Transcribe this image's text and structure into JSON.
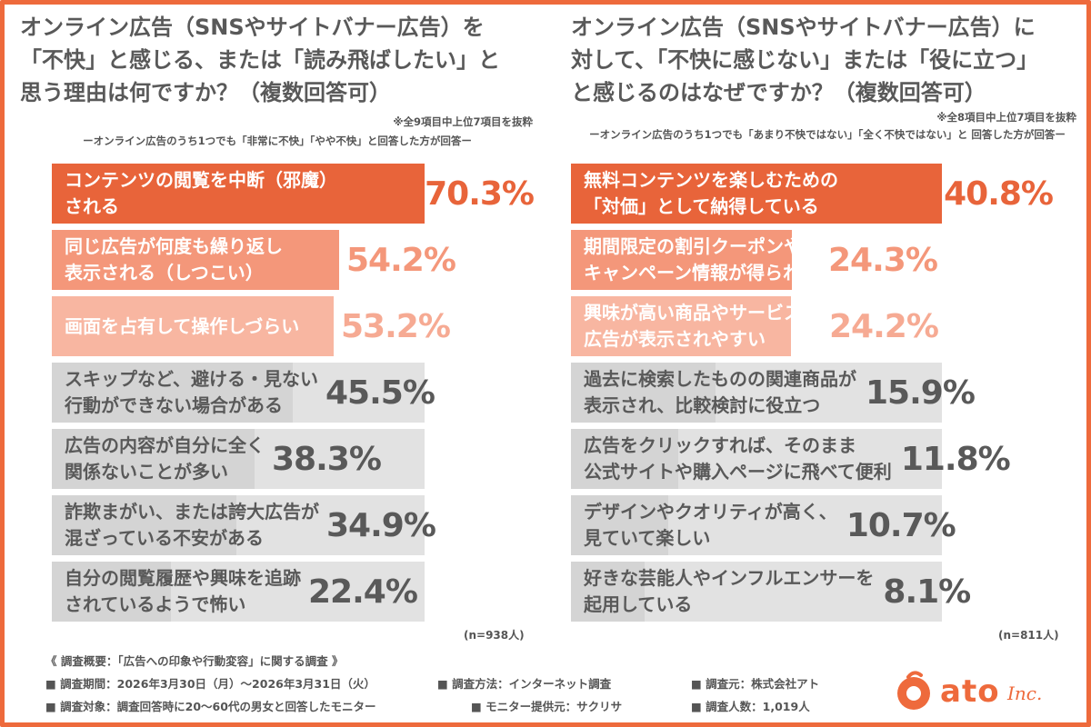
{
  "chart_data": [
    {
      "type": "bar",
      "title": "オンライン広告（SNSやサイトバナー広告）を\n「不快」と感じる、または「読み飛ばしたい」と\n思う理由は何ですか？（複数回答可）",
      "note": "※全9項目中上位7項目を抜粋",
      "subtitle": "ーオンライン広告のうち1つでも「非常に不快」「やや不快」と回答した方が回答ー",
      "categories": [
        "コンテンツの閲覧を中断（邪魔）\nされる",
        "同じ広告が何度も繰り返し\n表示される（しつこい）",
        "画面を占有して操作しづらい",
        "スキップなど、避ける・見ない\n行動ができない場合がある",
        "広告の内容が自分に全く\n関係ないことが多い",
        "詐欺まがい、または誇大広告が\n混ざっている不安がある",
        "自分の閲覧履歴や興味を追跡\nされているようで怖い"
      ],
      "values": [
        70.3,
        54.2,
        53.2,
        45.5,
        38.3,
        34.9,
        22.4
      ],
      "value_labels": [
        "70.3%",
        "54.2%",
        "53.2%",
        "45.5%",
        "38.3%",
        "34.9%",
        "22.4%"
      ],
      "n": "(n=938人)",
      "xlim": [
        0,
        100
      ]
    },
    {
      "type": "bar",
      "title": "オンライン広告（SNSやサイトバナー広告）に\n対して、「不快に感じない」または「役に立つ」\nと感じるのはなぜですか？（複数回答可）",
      "note": "※全8項目中上位7項目を抜粋",
      "subtitle": "ーオンライン広告のうち1つでも「あまり不快ではない」「全く不快ではない」と\n回答した方が回答ー",
      "categories": [
        "無料コンテンツを楽しむための\n「対価」として納得している",
        "期間限定の割引クーポンや\nキャンペーン情報が得られる",
        "興味が高い商品やサービスの\n広告が表示されやすい",
        "過去に検索したものの関連商品が\n表示され、比較検討に役立つ",
        "広告をクリックすれば、そのまま\n公式サイトや購入ページに飛べて便利",
        "デザインやクオリティが高く、\n見ていて楽しい",
        "好きな芸能人やインフルエンサーを\n起用している"
      ],
      "values": [
        40.8,
        24.3,
        24.2,
        15.9,
        11.8,
        10.7,
        8.1
      ],
      "value_labels": [
        "40.8%",
        "24.3%",
        "24.2%",
        "15.9%",
        "11.8%",
        "10.7%",
        "8.1%"
      ],
      "n": "(n=811人)",
      "xlim": [
        0,
        100
      ]
    }
  ],
  "colors": {
    "rank1": "#e8643a",
    "rank2": "#f4977a",
    "rank3": "#f8b6a1",
    "rest_fill": "#c8c8c8",
    "rest_bg": "#e2e2e2",
    "rank1_text": "#e8643a",
    "rank2_text": "#f4977a",
    "rank3_text": "#f6aa93",
    "rest_text": "#595959",
    "brand": "#ee6a3c"
  },
  "footer": {
    "overview": "《 調査概要：「広告への印象や行動変容」に関する調査 》",
    "period": "■ 調査期間：2026年3月30日（月）〜2026年3月31日（火）",
    "method": "■ 調査方法：インターネット調査",
    "source": "■ 調査元：株式会社アト",
    "target": "■ 調査対象：調査回答時に20〜60代の男女と回答したモニター",
    "provider": "■ モニター提供元：サクリサ",
    "count": "■ 調査人数：1,019人"
  },
  "logo": {
    "text": "ato",
    "suffix": "Inc.",
    "icon": "ato-logo-icon"
  }
}
